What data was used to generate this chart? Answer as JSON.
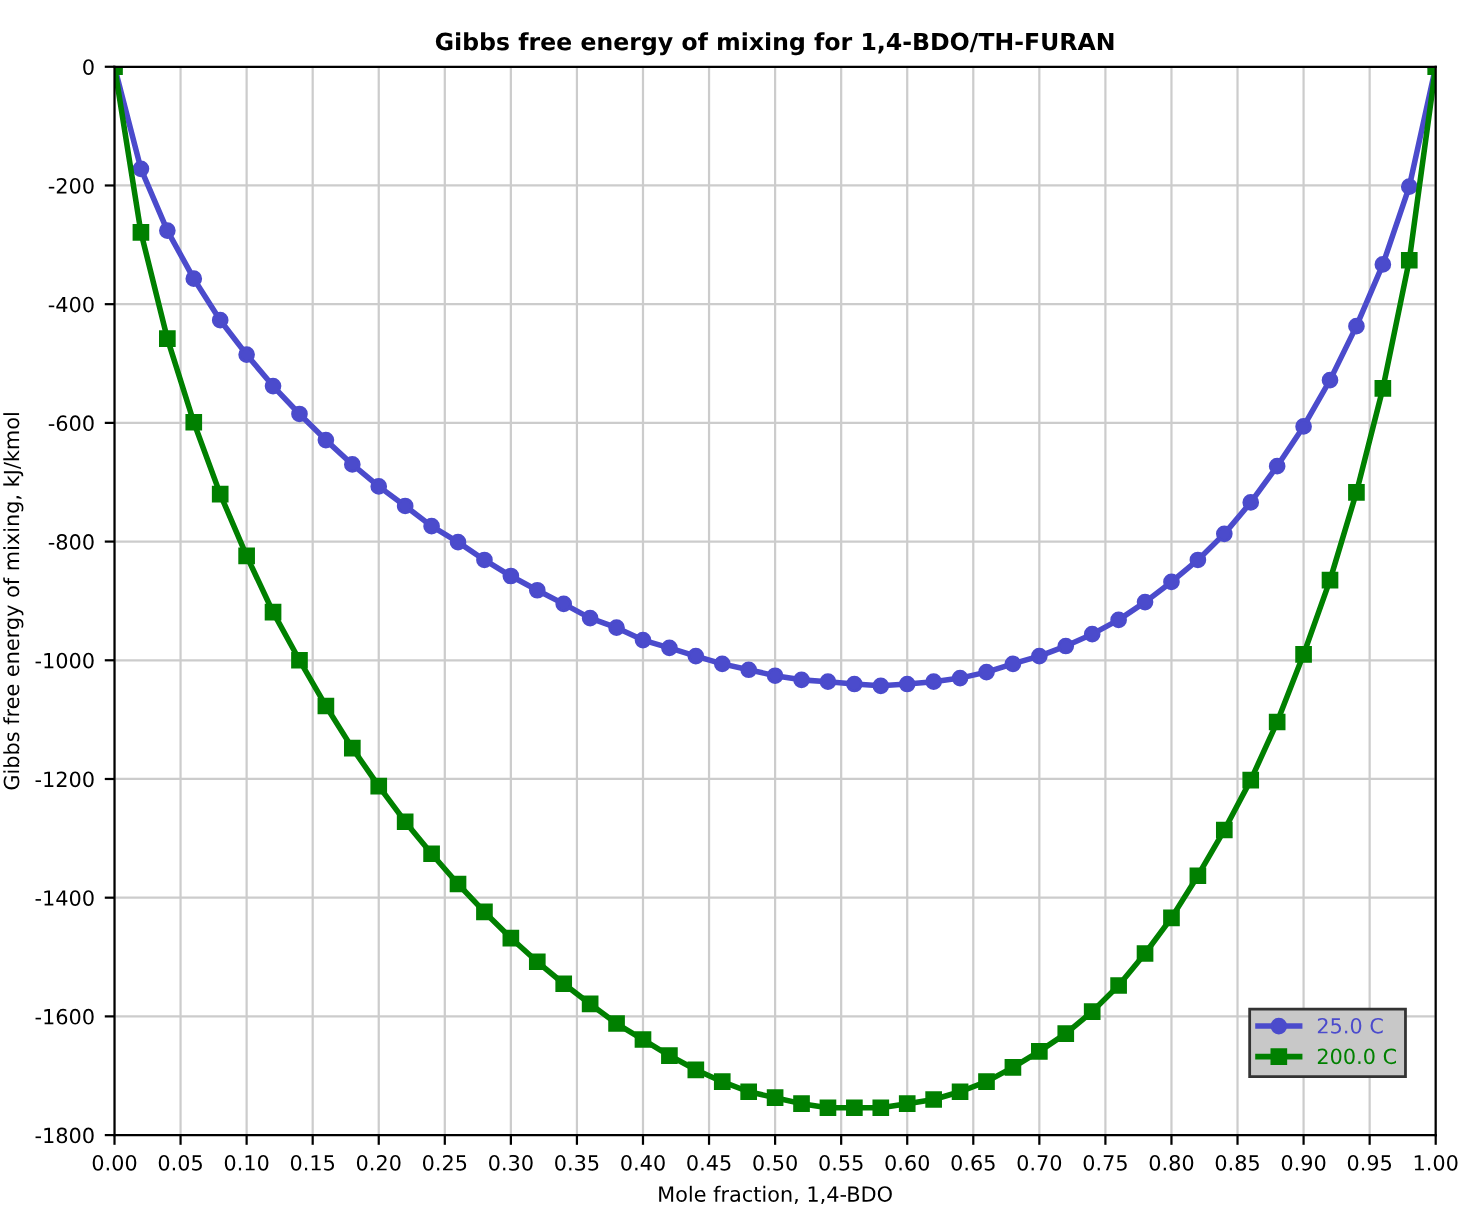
{
  "chart_data": {
    "type": "line",
    "title": "Gibbs free energy of mixing for 1,4-BDO/TH-FURAN",
    "xlabel": "Mole fraction, 1,4-BDO",
    "ylabel": "Gibbs free energy of mixing, kJ/kmol",
    "x": [
      0,
      0.02,
      0.04,
      0.06,
      0.08,
      0.1,
      0.12,
      0.14,
      0.16,
      0.18,
      0.2,
      0.22,
      0.24,
      0.26,
      0.28,
      0.3,
      0.32,
      0.34,
      0.36,
      0.38,
      0.4,
      0.42,
      0.44,
      0.46,
      0.48,
      0.5,
      0.52,
      0.54,
      0.56,
      0.58,
      0.6,
      0.62,
      0.64,
      0.66,
      0.68,
      0.7,
      0.72,
      0.74,
      0.76,
      0.78,
      0.8,
      0.82,
      0.84,
      0.86,
      0.88,
      0.9,
      0.92,
      0.94,
      0.96,
      0.98,
      1.0
    ],
    "series": [
      {
        "name": "25.0 C",
        "color": "#4b4bcc",
        "marker": "circle",
        "values": [
          0,
          -172,
          -276,
          -357,
          -427,
          -485,
          -538,
          -585,
          -629,
          -670,
          -707,
          -740,
          -774,
          -801,
          -831,
          -858,
          -882,
          -905,
          -929,
          -945,
          -966,
          -979,
          -993,
          -1006,
          -1016,
          -1026,
          -1033,
          -1036,
          -1040,
          -1043,
          -1040,
          -1036,
          -1030,
          -1020,
          -1006,
          -993,
          -976,
          -956,
          -932,
          -902,
          -868,
          -831,
          -787,
          -734,
          -673,
          -606,
          -528,
          -437,
          -333,
          -202,
          0
        ]
      },
      {
        "name": "200.0 C",
        "color": "#008000",
        "marker": "square",
        "values": [
          0,
          -279,
          -458,
          -599,
          -720,
          -824,
          -919,
          -1000,
          -1077,
          -1148,
          -1212,
          -1272,
          -1326,
          -1377,
          -1424,
          -1468,
          -1508,
          -1545,
          -1579,
          -1612,
          -1639,
          -1666,
          -1690,
          -1710,
          -1727,
          -1737,
          -1747,
          -1754,
          -1754,
          -1754,
          -1747,
          -1740,
          -1727,
          -1710,
          -1686,
          -1659,
          -1629,
          -1592,
          -1548,
          -1494,
          -1434,
          -1363,
          -1286,
          -1202,
          -1104,
          -990,
          -865,
          -717,
          -542,
          -326,
          0
        ]
      }
    ],
    "xlim": [
      0,
      1
    ],
    "ylim": [
      -1800,
      0
    ],
    "xticks": [
      {
        "value": 0,
        "label": "0.00"
      },
      {
        "value": 0.05,
        "label": "0.05"
      },
      {
        "value": 0.1,
        "label": "0.10"
      },
      {
        "value": 0.15,
        "label": "0.15"
      },
      {
        "value": 0.2,
        "label": "0.20"
      },
      {
        "value": 0.25,
        "label": "0.25"
      },
      {
        "value": 0.3,
        "label": "0.30"
      },
      {
        "value": 0.35,
        "label": "0.35"
      },
      {
        "value": 0.4,
        "label": "0.40"
      },
      {
        "value": 0.45,
        "label": "0.45"
      },
      {
        "value": 0.5,
        "label": "0.50"
      },
      {
        "value": 0.55,
        "label": "0.55"
      },
      {
        "value": 0.6,
        "label": "0.60"
      },
      {
        "value": 0.65,
        "label": "0.65"
      },
      {
        "value": 0.7,
        "label": "0.70"
      },
      {
        "value": 0.75,
        "label": "0.75"
      },
      {
        "value": 0.8,
        "label": "0.80"
      },
      {
        "value": 0.85,
        "label": "0.85"
      },
      {
        "value": 0.9,
        "label": "0.90"
      },
      {
        "value": 0.95,
        "label": "0.95"
      },
      {
        "value": 1.0,
        "label": "1.00"
      }
    ],
    "yticks": [
      -1800,
      -1600,
      -1400,
      -1200,
      -1000,
      -800,
      -600,
      -400,
      -200,
      0
    ],
    "grid": true,
    "legend": "bottom right",
    "line_style": "solid"
  }
}
